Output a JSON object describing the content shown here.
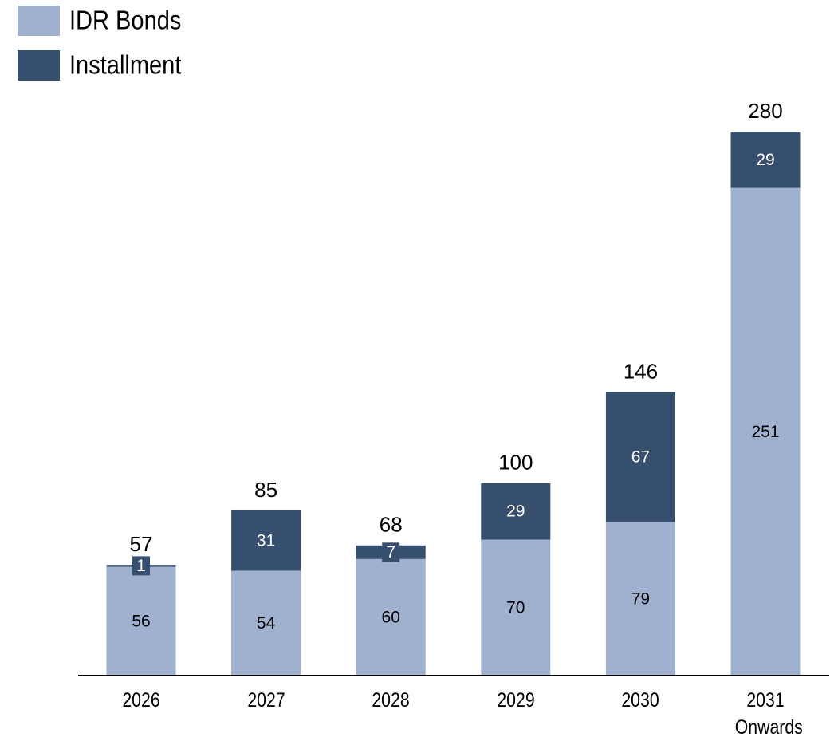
{
  "chart_data": {
    "type": "stacked_bar",
    "categories": [
      "2026",
      "2027",
      "2028",
      "2029",
      "2030",
      "2031 Onwards"
    ],
    "series": [
      {
        "name": "IDR Bonds",
        "color": "#9fb1cf",
        "values": [
          56,
          54,
          60,
          70,
          79,
          251
        ]
      },
      {
        "name": "Installment",
        "color": "#374f6f",
        "values": [
          1,
          31,
          7,
          29,
          67,
          29
        ]
      }
    ],
    "totals": [
      57,
      85,
      68,
      100,
      146,
      280
    ],
    "legend": "top-left"
  }
}
